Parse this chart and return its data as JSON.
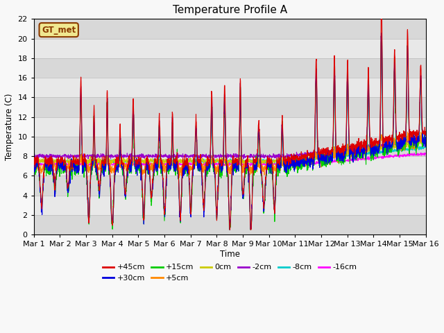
{
  "title": "Temperature Profile A",
  "xlabel": "Time",
  "ylabel": "Temperature (C)",
  "ylim": [
    0,
    22
  ],
  "xlim": [
    0,
    15
  ],
  "xtick_labels": [
    "Mar 1",
    "Mar 2",
    "Mar 3",
    "Mar 4",
    "Mar 5",
    "Mar 6",
    "Mar 7",
    "Mar 8",
    "Mar 9",
    "Mar 10",
    "Mar 11",
    "Mar 12",
    "Mar 13",
    "Mar 14",
    "Mar 15",
    "Mar 16"
  ],
  "legend_label_box": "GT_met",
  "series_labels": [
    "+45cm",
    "+30cm",
    "+15cm",
    "+5cm",
    "0cm",
    "-2cm",
    "-8cm",
    "-16cm"
  ],
  "series_colors": [
    "#dd0000",
    "#0000dd",
    "#00cc00",
    "#ff8800",
    "#cccc00",
    "#9900cc",
    "#00cccc",
    "#ff00ff"
  ],
  "title_fontsize": 11,
  "figsize": [
    6.4,
    4.8
  ],
  "dpi": 100
}
